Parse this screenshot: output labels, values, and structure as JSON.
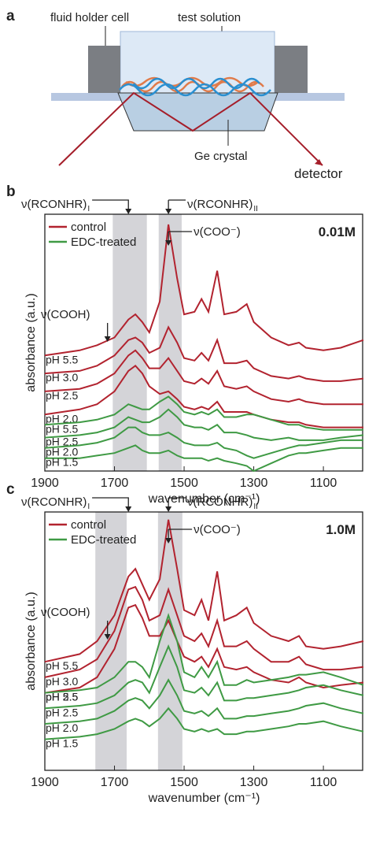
{
  "diagram": {
    "panel_label": "a",
    "holder": "fluid holder cell",
    "solution": "test solution",
    "crystal": "Ge crystal",
    "detector": "detector"
  },
  "chart_data": [
    {
      "type": "line",
      "panel_label": "b",
      "concentration": "0.01M",
      "x_label": "wavenumber (cm⁻¹)",
      "y_label": "absorbance (a.u.)",
      "xlim": [
        1900,
        985
      ],
      "ylim": [
        0,
        100
      ],
      "xticks": [
        1900,
        1700,
        1500,
        1300,
        1100
      ],
      "bands": [
        [
          1705,
          1607
        ],
        [
          1573,
          1507
        ]
      ],
      "annotations": {
        "amide_I": "ν(RCONHR)",
        "amide_I_sub": "I",
        "amide_II": "ν(RCONHR)",
        "amide_II_sub": "II",
        "carboxylate": "ν(COO⁻)",
        "carboxyl": "ν(COOH)"
      },
      "legend": [
        {
          "label": "control",
          "color": "#b2232f"
        },
        {
          "label": "EDC-treated",
          "color": "#3f9a44"
        }
      ],
      "x": [
        1900,
        1800,
        1750,
        1700,
        1660,
        1640,
        1620,
        1600,
        1570,
        1545,
        1520,
        1500,
        1470,
        1450,
        1430,
        1405,
        1385,
        1350,
        1320,
        1300,
        1250,
        1200,
        1170,
        1150,
        1100,
        1050,
        985
      ],
      "series": [
        {
          "name": "pH 5.5",
          "color": "#b2232f",
          "values": [
            45,
            47,
            49,
            52,
            59,
            61,
            58,
            54,
            66,
            96,
            75,
            61,
            62,
            67,
            62,
            78,
            61,
            62,
            65,
            58,
            52,
            49,
            50,
            48,
            47,
            48,
            51
          ]
        },
        {
          "name": "pH 3.0",
          "color": "#b2232f",
          "values": [
            38,
            39,
            41,
            45,
            51,
            52,
            50,
            46,
            48,
            56,
            50,
            44,
            43,
            46,
            43,
            51,
            42,
            42,
            43,
            40,
            37,
            36,
            37,
            36,
            35,
            35,
            36
          ]
        },
        {
          "name": "pH 2.5",
          "color": "#b2232f",
          "values": [
            31,
            32,
            34,
            38,
            45,
            47,
            44,
            40,
            40,
            44,
            39,
            35,
            34,
            36,
            34,
            39,
            33,
            32,
            33,
            31,
            28,
            27,
            28,
            27,
            26,
            26,
            26
          ]
        },
        {
          "name": "pH 2.0",
          "color": "#b2232f",
          "values": [
            22,
            24,
            26,
            31,
            39,
            41,
            38,
            33,
            30,
            31,
            28,
            25,
            24,
            25,
            24,
            27,
            23,
            23,
            23,
            22,
            20,
            19,
            19,
            18,
            17,
            17,
            17
          ]
        },
        {
          "name": "pH 5.5",
          "color": "#3f9a44",
          "values": [
            18,
            19,
            20,
            22,
            26,
            25,
            24,
            24,
            27,
            29,
            26,
            23,
            22,
            23,
            22,
            24,
            21,
            21,
            22,
            22,
            20,
            18,
            18,
            17,
            16,
            16,
            16
          ]
        },
        {
          "name": "pH 2.5",
          "color": "#3f9a44",
          "values": [
            13,
            14,
            15,
            17,
            21,
            20,
            19,
            19,
            21,
            24,
            21,
            18,
            17,
            17,
            16,
            18,
            15,
            15,
            14,
            13,
            12,
            13,
            12,
            12,
            12,
            13,
            14
          ]
        },
        {
          "name": "pH 2.0",
          "color": "#3f9a44",
          "values": [
            9,
            10,
            11,
            13,
            17,
            17,
            15,
            14,
            14,
            15,
            13,
            11,
            10,
            10,
            10,
            11,
            9,
            8,
            6,
            5,
            7,
            9,
            10,
            10,
            11,
            12,
            12
          ]
        },
        {
          "name": "pH 1.5",
          "color": "#3f9a44",
          "values": [
            5,
            5,
            6,
            7,
            9,
            10,
            8,
            7,
            7,
            8,
            6,
            5,
            5,
            5,
            4,
            5,
            4,
            3,
            2,
            0,
            3,
            6,
            7,
            7,
            8,
            9,
            9
          ]
        }
      ]
    },
    {
      "type": "line",
      "panel_label": "c",
      "concentration": "1.0M",
      "x_label": "wavenumber (cm⁻¹)",
      "y_label": "absorbance (a.u.)",
      "xlim": [
        1900,
        985
      ],
      "ylim": [
        0,
        100
      ],
      "xticks": [
        1900,
        1700,
        1500,
        1300,
        1100
      ],
      "bands": [
        [
          1755,
          1665
        ],
        [
          1575,
          1505
        ]
      ],
      "annotations": {
        "amide_I": "ν(RCONHR)",
        "amide_I_sub": "I",
        "amide_II": "ν(RCONHR)",
        "amide_II_sub": "II",
        "carboxylate": "ν(COO⁻)",
        "carboxyl": "ν(COOH)"
      },
      "legend": [
        {
          "label": "control",
          "color": "#b2232f"
        },
        {
          "label": "EDC-treated",
          "color": "#3f9a44"
        }
      ],
      "x": [
        1900,
        1800,
        1750,
        1700,
        1660,
        1640,
        1620,
        1600,
        1570,
        1545,
        1520,
        1500,
        1470,
        1450,
        1430,
        1405,
        1385,
        1350,
        1320,
        1300,
        1250,
        1200,
        1170,
        1150,
        1100,
        1050,
        985
      ],
      "series": [
        {
          "name": "pH 5.5",
          "color": "#b2232f",
          "values": [
            42,
            45,
            50,
            60,
            75,
            78,
            72,
            66,
            74,
            97,
            78,
            62,
            60,
            66,
            58,
            77,
            58,
            60,
            63,
            57,
            52,
            50,
            52,
            48,
            47,
            48,
            50
          ]
        },
        {
          "name": "pH 3.0",
          "color": "#b2232f",
          "values": [
            36,
            39,
            43,
            54,
            70,
            71,
            66,
            58,
            60,
            70,
            60,
            52,
            50,
            53,
            48,
            58,
            48,
            48,
            50,
            47,
            42,
            42,
            44,
            41,
            39,
            39,
            40
          ]
        },
        {
          "name": "pH 2.5",
          "color": "#b2232f",
          "values": [
            30,
            32,
            36,
            47,
            63,
            64,
            59,
            52,
            52,
            58,
            50,
            44,
            42,
            44,
            40,
            47,
            40,
            39,
            40,
            38,
            35,
            34,
            36,
            34,
            32,
            33,
            34
          ]
        },
        {
          "name": "pH 5.5",
          "color": "#3f9a44",
          "values": [
            30,
            31,
            32,
            36,
            42,
            42,
            40,
            36,
            50,
            60,
            50,
            38,
            36,
            40,
            36,
            42,
            33,
            33,
            35,
            34,
            35,
            36,
            37,
            37,
            38,
            36,
            33
          ]
        },
        {
          "name": "pH 2.5",
          "color": "#3f9a44",
          "values": [
            24,
            25,
            26,
            29,
            34,
            35,
            34,
            30,
            40,
            48,
            40,
            31,
            30,
            32,
            29,
            34,
            27,
            27,
            28,
            28,
            29,
            30,
            31,
            32,
            33,
            31,
            29
          ]
        },
        {
          "name": "pH 2.0",
          "color": "#3f9a44",
          "values": [
            18,
            19,
            20,
            23,
            27,
            28,
            27,
            24,
            29,
            35,
            29,
            23,
            22,
            23,
            21,
            24,
            20,
            20,
            21,
            21,
            22,
            23,
            24,
            25,
            26,
            24,
            22
          ]
        },
        {
          "name": "pH 1.5",
          "color": "#3f9a44",
          "values": [
            12,
            13,
            14,
            16,
            19,
            20,
            19,
            17,
            20,
            24,
            20,
            16,
            15,
            16,
            15,
            16,
            14,
            14,
            15,
            15,
            16,
            17,
            18,
            18,
            19,
            17,
            15
          ]
        }
      ]
    }
  ]
}
